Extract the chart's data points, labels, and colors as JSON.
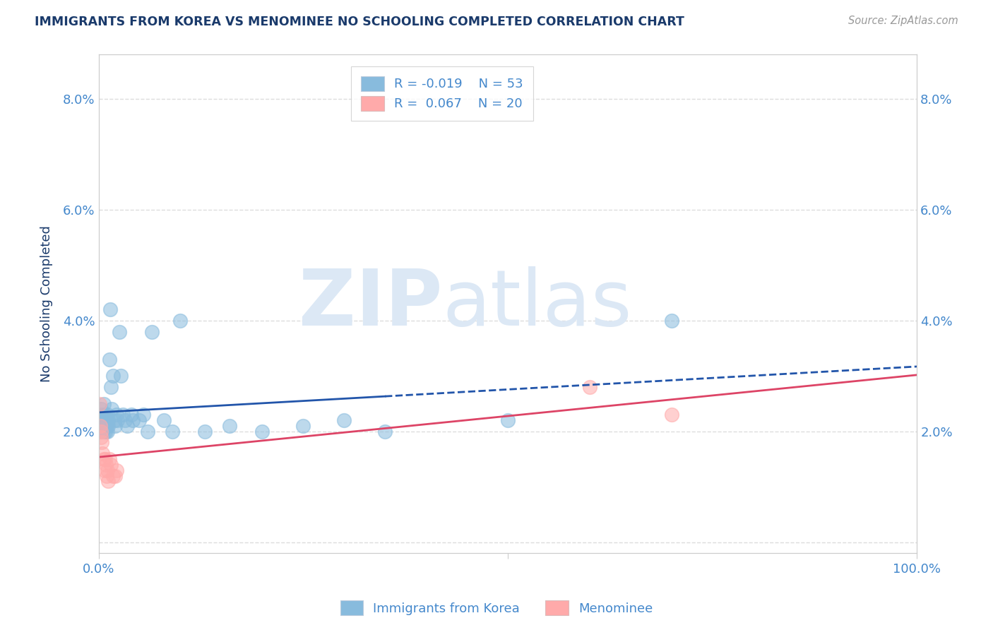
{
  "title": "IMMIGRANTS FROM KOREA VS MENOMINEE NO SCHOOLING COMPLETED CORRELATION CHART",
  "source": "Source: ZipAtlas.com",
  "ylabel": "No Schooling Completed",
  "xlim": [
    0.0,
    1.0
  ],
  "ylim": [
    -0.002,
    0.088
  ],
  "yticks": [
    0.0,
    0.02,
    0.04,
    0.06,
    0.08
  ],
  "ytick_labels": [
    "",
    "2.0%",
    "4.0%",
    "6.0%",
    "8.0%"
  ],
  "xticks": [
    0.0,
    0.5,
    1.0
  ],
  "xtick_labels": [
    "0.0%",
    "",
    "100.0%"
  ],
  "blue_color": "#88bbdd",
  "pink_color": "#ffaaaa",
  "line_blue": "#2255aa",
  "line_pink": "#dd4466",
  "blue_x": [
    0.001,
    0.002,
    0.003,
    0.003,
    0.004,
    0.004,
    0.005,
    0.005,
    0.006,
    0.006,
    0.007,
    0.007,
    0.008,
    0.008,
    0.009,
    0.009,
    0.01,
    0.01,
    0.011,
    0.011,
    0.012,
    0.012,
    0.013,
    0.014,
    0.015,
    0.016,
    0.018,
    0.019,
    0.02,
    0.022,
    0.023,
    0.025,
    0.027,
    0.03,
    0.032,
    0.035,
    0.04,
    0.042,
    0.05,
    0.055,
    0.06,
    0.065,
    0.08,
    0.09,
    0.1,
    0.13,
    0.16,
    0.2,
    0.25,
    0.3,
    0.35,
    0.5,
    0.7
  ],
  "blue_y": [
    0.022,
    0.02,
    0.024,
    0.022,
    0.021,
    0.023,
    0.02,
    0.022,
    0.021,
    0.025,
    0.022,
    0.02,
    0.023,
    0.021,
    0.022,
    0.02,
    0.022,
    0.021,
    0.023,
    0.02,
    0.022,
    0.021,
    0.033,
    0.042,
    0.028,
    0.024,
    0.03,
    0.022,
    0.021,
    0.023,
    0.022,
    0.038,
    0.03,
    0.023,
    0.022,
    0.021,
    0.023,
    0.022,
    0.022,
    0.023,
    0.02,
    0.038,
    0.022,
    0.02,
    0.04,
    0.02,
    0.021,
    0.02,
    0.021,
    0.022,
    0.02,
    0.022,
    0.04
  ],
  "pink_x": [
    0.001,
    0.002,
    0.003,
    0.003,
    0.004,
    0.005,
    0.006,
    0.007,
    0.008,
    0.009,
    0.01,
    0.011,
    0.012,
    0.013,
    0.015,
    0.018,
    0.02,
    0.022,
    0.6,
    0.7
  ],
  "pink_y": [
    0.025,
    0.021,
    0.02,
    0.019,
    0.018,
    0.016,
    0.015,
    0.013,
    0.015,
    0.014,
    0.012,
    0.013,
    0.011,
    0.015,
    0.014,
    0.012,
    0.012,
    0.013,
    0.028,
    0.023
  ],
  "title_color": "#1a3a6b",
  "tick_color": "#4488cc",
  "axis_color": "#cccccc",
  "grid_color": "#dddddd",
  "watermark_color": "#dce8f5"
}
